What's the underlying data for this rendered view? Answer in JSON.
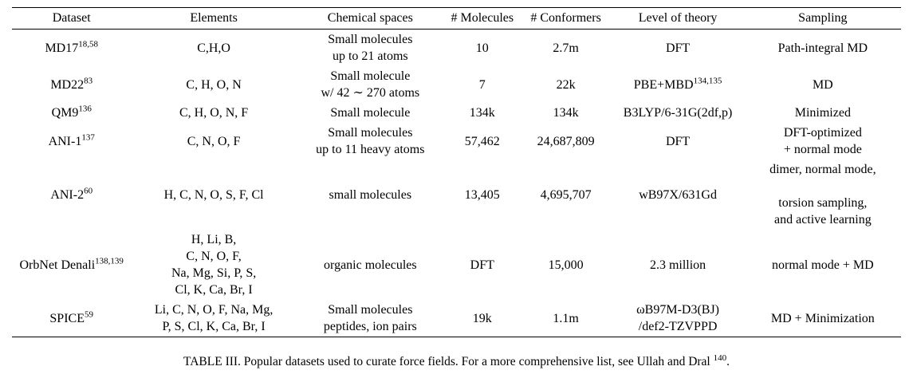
{
  "table": {
    "columns": [
      "Dataset",
      "Elements",
      "Chemical spaces",
      "# Molecules",
      "# Conformers",
      "Level of theory",
      "Sampling"
    ],
    "rows": [
      {
        "dataset": [
          [
            "MD17",
            {
              "sup": "18,58"
            }
          ]
        ],
        "elements": [
          [
            "C,H,O"
          ]
        ],
        "chemical_spaces": [
          [
            "Small molecules"
          ],
          [
            "up to 21 atoms"
          ]
        ],
        "molecules": [
          [
            "10"
          ]
        ],
        "conformers": [
          [
            "2.7m"
          ]
        ],
        "level_of_theory": [
          [
            "DFT"
          ]
        ],
        "sampling": [
          [
            "Path-integral MD"
          ]
        ]
      },
      {
        "dataset": [
          [
            "MD22",
            {
              "sup": "83"
            }
          ]
        ],
        "elements": [
          [
            "C, H, O, N"
          ]
        ],
        "chemical_spaces": [
          [
            "Small molecule"
          ],
          [
            "w/ 42 ∼ 270 atoms"
          ]
        ],
        "molecules": [
          [
            "7"
          ]
        ],
        "conformers": [
          [
            "22k"
          ]
        ],
        "level_of_theory": [
          [
            "PBE+MBD",
            {
              "sup": "134,135"
            }
          ]
        ],
        "sampling": [
          [
            "MD"
          ]
        ]
      },
      {
        "dataset": [
          [
            "QM9",
            {
              "sup": "136"
            }
          ]
        ],
        "elements": [
          [
            "C, H, O, N, F"
          ]
        ],
        "chemical_spaces": [
          [
            "Small molecule"
          ]
        ],
        "molecules": [
          [
            "134k"
          ]
        ],
        "conformers": [
          [
            "134k"
          ]
        ],
        "level_of_theory": [
          [
            "B3LYP/6-31G(2df,p)"
          ]
        ],
        "sampling": [
          [
            "Minimized"
          ]
        ]
      },
      {
        "dataset": [
          [
            "ANI-1",
            {
              "sup": "137"
            }
          ]
        ],
        "elements": [
          [
            "C, N, O, F"
          ]
        ],
        "chemical_spaces": [
          [
            "Small molecules"
          ],
          [
            "up to 11 heavy atoms"
          ]
        ],
        "molecules": [
          [
            "57,462"
          ]
        ],
        "conformers": [
          [
            "24,687,809"
          ]
        ],
        "level_of_theory": [
          [
            "DFT"
          ]
        ],
        "sampling": [
          [
            "DFT-optimized"
          ],
          [
            "+ normal mode"
          ]
        ]
      },
      {
        "dataset": [
          [
            "ANI-2",
            {
              "sup": "60"
            }
          ]
        ],
        "elements": [
          [
            "H, C, N, O, S, F, Cl"
          ]
        ],
        "chemical_spaces": [
          [
            "small molecules"
          ]
        ],
        "molecules": [
          [
            "13,405"
          ]
        ],
        "conformers": [
          [
            "4,695,707"
          ]
        ],
        "level_of_theory": [
          [
            "wB97X/631Gd"
          ]
        ],
        "sampling": [
          [
            "dimer, normal mode,"
          ],
          [
            ""
          ],
          [
            "torsion sampling,"
          ],
          [
            "and active learning"
          ]
        ]
      },
      {
        "dataset": [
          [
            "OrbNet Denali",
            {
              "sup": "138,139"
            }
          ]
        ],
        "elements": [
          [
            "H, Li, B,"
          ],
          [
            "C, N, O, F,"
          ],
          [
            "Na, Mg, Si, P, S,"
          ],
          [
            "Cl, K, Ca, Br, I"
          ]
        ],
        "chemical_spaces": [
          [
            "organic molecules"
          ]
        ],
        "molecules": [
          [
            "DFT"
          ]
        ],
        "conformers": [
          [
            "15,000"
          ]
        ],
        "level_of_theory": [
          [
            "2.3 million"
          ]
        ],
        "sampling": [
          [
            "normal mode + MD"
          ]
        ]
      },
      {
        "dataset": [
          [
            "SPICE",
            {
              "sup": "59"
            }
          ]
        ],
        "elements": [
          [
            "Li, C, N, O, F, Na, Mg,"
          ],
          [
            "P, S, Cl, K, Ca, Br, I"
          ]
        ],
        "chemical_spaces": [
          [
            "Small molecules"
          ],
          [
            "peptides, ion pairs"
          ]
        ],
        "molecules": [
          [
            "19k"
          ]
        ],
        "conformers": [
          [
            "1.1m"
          ]
        ],
        "level_of_theory": [
          [
            "ωB97M-D3(BJ)"
          ],
          [
            "/def2-TZVPPD"
          ]
        ],
        "sampling": [
          [
            "MD + Minimization"
          ]
        ]
      }
    ]
  },
  "caption": {
    "segments": [
      "TABLE III. Popular datasets used to curate force fields. For a more comprehensive list, see Ullah and Dral ",
      {
        "sup": "140"
      },
      "."
    ]
  }
}
